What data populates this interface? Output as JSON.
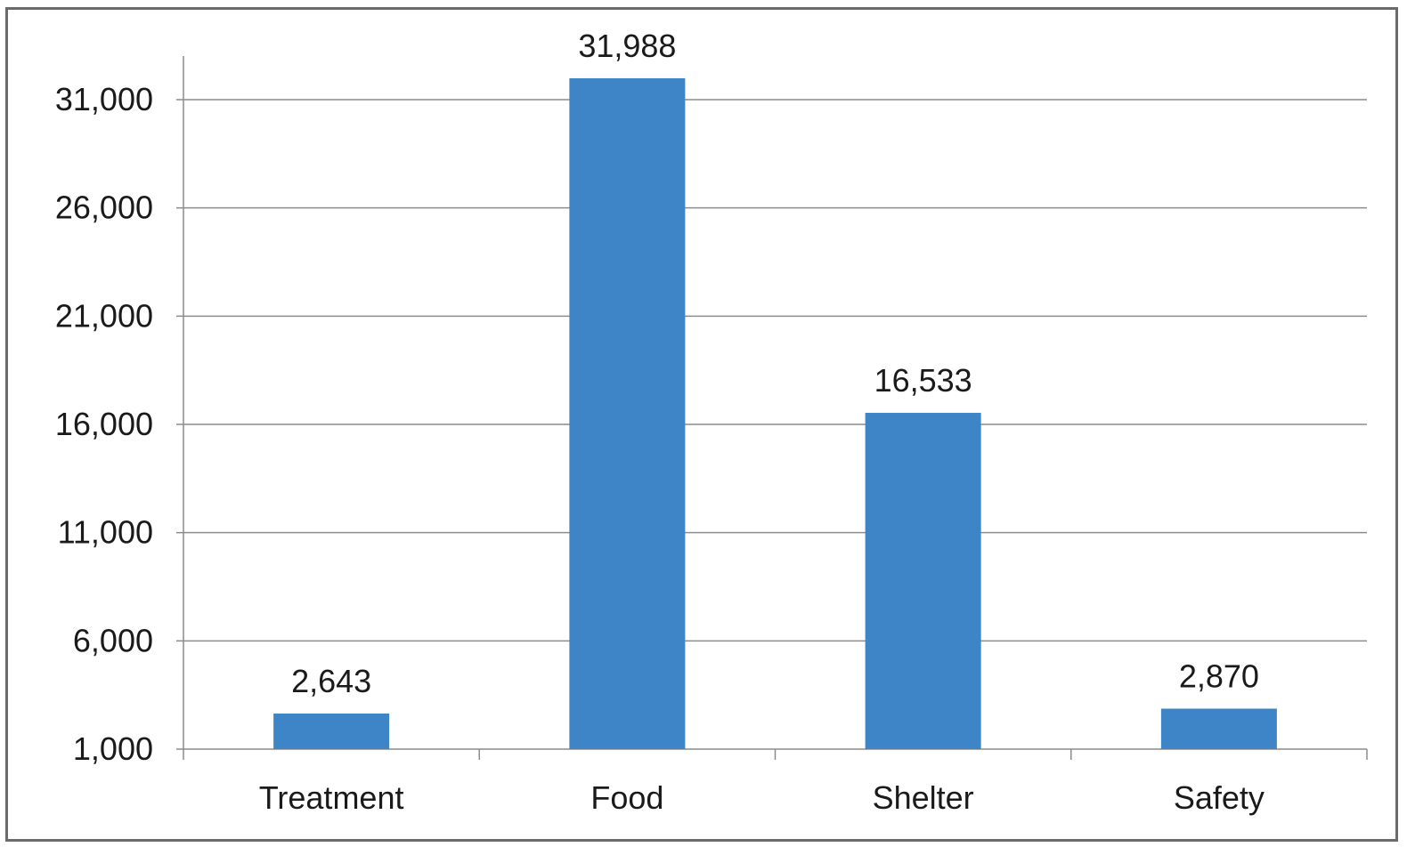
{
  "chart_data": {
    "type": "bar",
    "title": "",
    "xlabel": "",
    "ylabel": "",
    "categories": [
      "Treatment",
      "Food",
      "Shelter",
      "Safety"
    ],
    "values": [
      2643,
      31988,
      16533,
      2870
    ],
    "value_labels": [
      "2,643",
      "31,988",
      "16,533",
      "2,870"
    ],
    "yticks": [
      1000,
      6000,
      11000,
      16000,
      21000,
      26000,
      31000
    ],
    "ytick_labels": [
      "1,000",
      "6,000",
      "11,000",
      "16,000",
      "21,000",
      "26,000",
      "31,000"
    ],
    "ylim": [
      1000,
      32000
    ],
    "grid": "horizontal",
    "legend": "none",
    "bar_color": "#3d85c6",
    "grid_color": "#8c8c8c"
  }
}
